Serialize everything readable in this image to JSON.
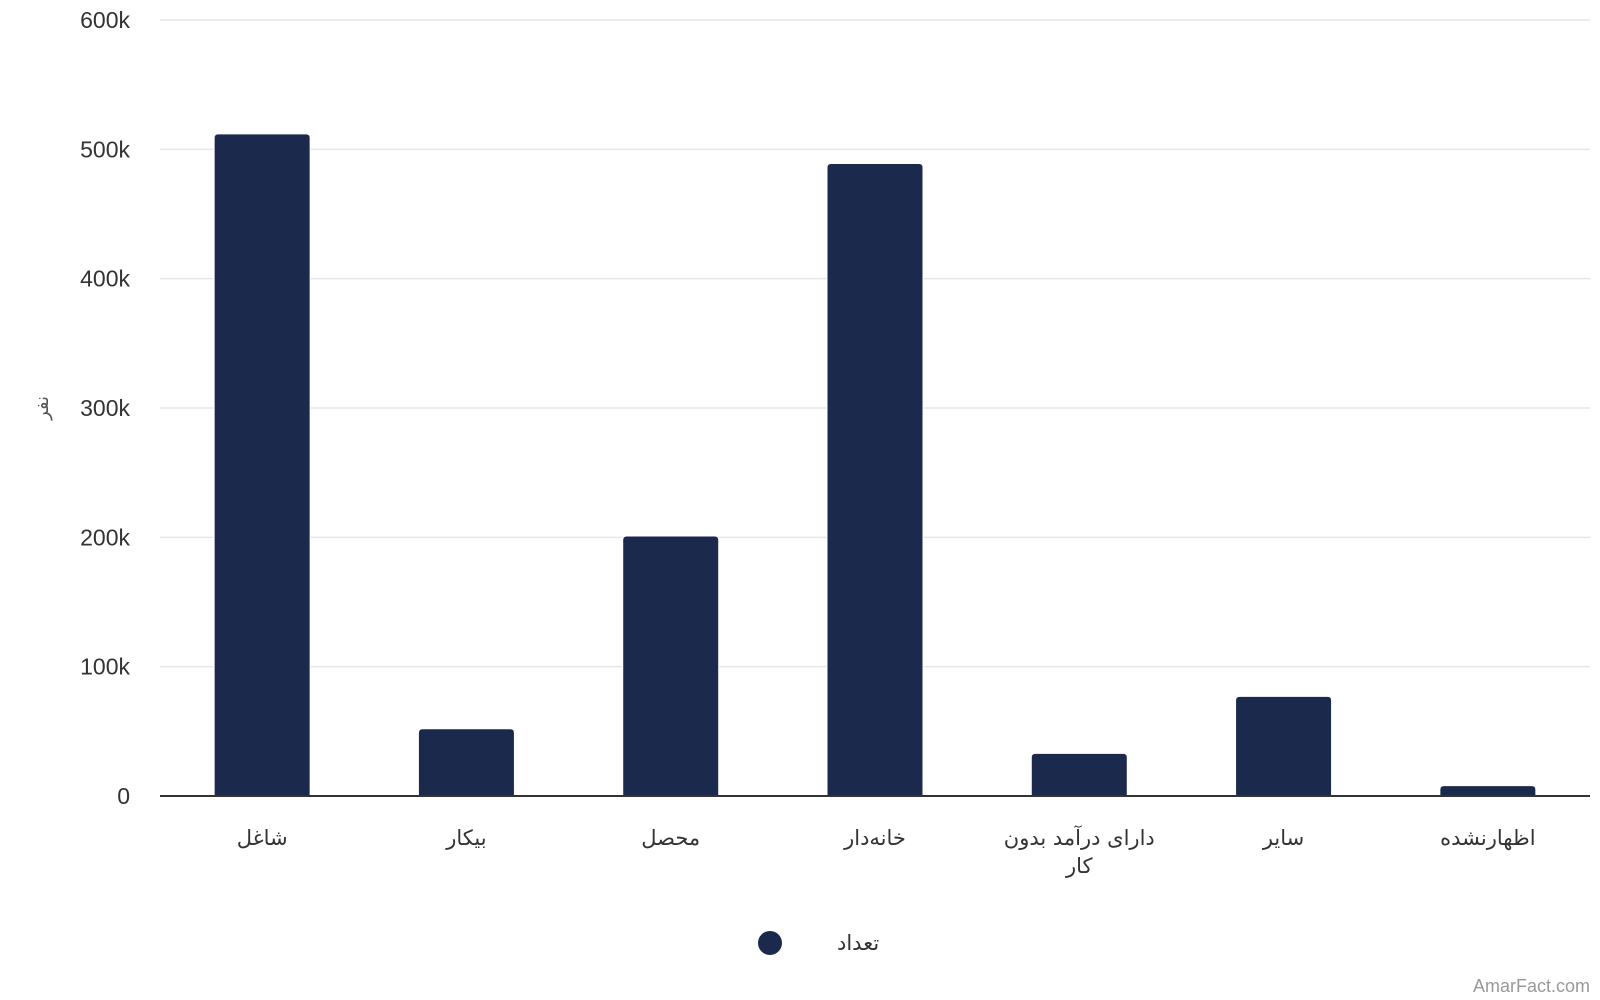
{
  "chart_data": {
    "type": "bar",
    "categories": [
      "شاغل",
      "بیکار",
      "محصل",
      "خانه‌دار",
      "دارای درآمد بدون کار",
      "سایر",
      "اظهارنشده"
    ],
    "series": [
      {
        "name": "تعداد",
        "values": [
          512000,
          52000,
          201000,
          489000,
          33000,
          77000,
          8000
        ]
      }
    ],
    "ylabel": "نفر",
    "ylim": [
      0,
      600000
    ],
    "yticks": [
      0,
      100000,
      200000,
      300000,
      400000,
      500000,
      600000
    ],
    "ytick_labels": [
      "0",
      "100k",
      "200k",
      "300k",
      "400k",
      "500k",
      "600k"
    ],
    "grid": true,
    "legend": "bottom-center",
    "colors": {
      "bar": "#1b2a4c",
      "grid": "#e6e6e6",
      "axis": "#333333"
    }
  },
  "credit": "AmarFact.com"
}
